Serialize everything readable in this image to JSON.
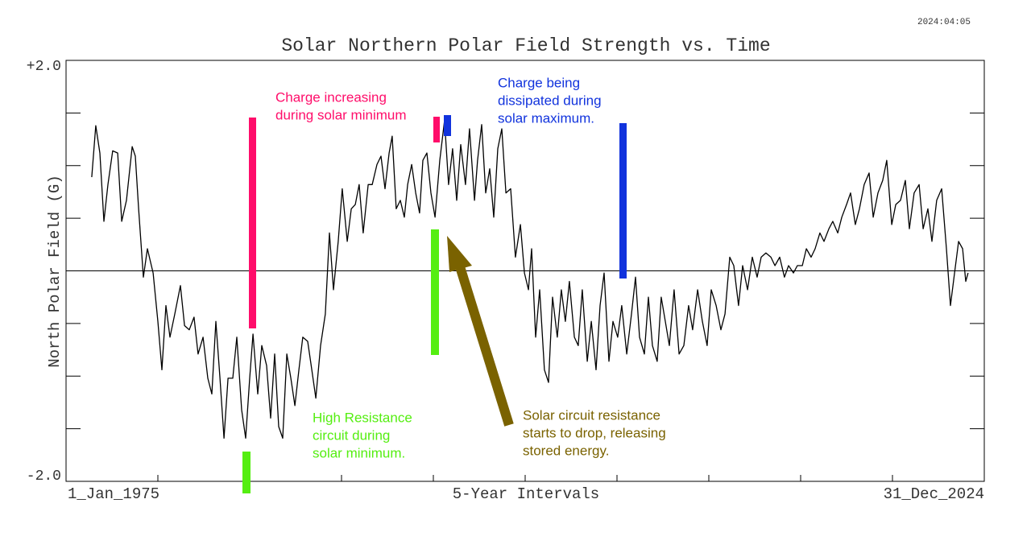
{
  "date_stamp": "2024:04:05",
  "chart_data": {
    "type": "line",
    "title": "Solar Northern Polar Field Strength vs. Time",
    "ylabel": "North Polar Field (G)",
    "xlabel": "5-Year Intervals",
    "xlim": [
      1975,
      2025
    ],
    "xticks": [
      {
        "value": 1975,
        "label": "1_Jan_1975"
      },
      {
        "value": 2025,
        "label": "31_Dec_2024"
      }
    ],
    "minor_xticks": [
      1980,
      1985,
      1990,
      1995,
      2000,
      2005,
      2010,
      2015,
      2020
    ],
    "ylim": [
      -2,
      2
    ],
    "yticks": [
      {
        "value": 2,
        "label": "+2.0"
      },
      {
        "value": -2,
        "label": "-2.0"
      }
    ],
    "minor_yticks": [
      -1.5,
      -1,
      -0.5,
      0,
      0.5,
      1,
      1.5
    ],
    "hlines": [
      0
    ],
    "color": "#000000",
    "x": [
      1976.4,
      1976.62,
      1976.84,
      1977.06,
      1977.28,
      1977.54,
      1977.81,
      1978.03,
      1978.29,
      1978.6,
      1978.77,
      1978.95,
      1979.21,
      1979.43,
      1979.74,
      1980.0,
      1980.22,
      1980.44,
      1980.66,
      1980.92,
      1981.23,
      1981.45,
      1981.71,
      1981.97,
      1982.19,
      1982.46,
      1982.72,
      1982.94,
      1983.16,
      1983.38,
      1983.6,
      1983.82,
      1984.08,
      1984.3,
      1984.56,
      1984.78,
      1985.0,
      1985.18,
      1985.44,
      1985.66,
      1985.92,
      1986.14,
      1986.36,
      1986.58,
      1986.8,
      1987.02,
      1987.24,
      1987.46,
      1987.68,
      1987.89,
      1988.16,
      1988.38,
      1988.6,
      1988.86,
      1989.12,
      1989.34,
      1989.56,
      1989.82,
      1990.04,
      1990.31,
      1990.53,
      1990.75,
      1990.96,
      1991.18,
      1991.45,
      1991.67,
      1991.93,
      1992.15,
      1992.37,
      1992.59,
      1992.76,
      1992.98,
      1993.2,
      1993.42,
      1993.6,
      1993.82,
      1994.04,
      1994.25,
      1994.43,
      1994.65,
      1994.87,
      1995.09,
      1995.35,
      1995.61,
      1995.83,
      1996.05,
      1996.27,
      1996.49,
      1996.75,
      1996.97,
      1997.24,
      1997.41,
      1997.63,
      1997.85,
      1998.07,
      1998.29,
      1998.51,
      1998.73,
      1998.95,
      1999.21,
      1999.47,
      1999.74,
      1999.96,
      2000.18,
      2000.35,
      2000.57,
      2000.79,
      2001.05,
      2001.27,
      2001.49,
      2001.75,
      2001.97,
      2002.19,
      2002.41,
      2002.68,
      2002.89,
      2003.11,
      2003.38,
      2003.6,
      2003.86,
      2004.08,
      2004.3,
      2004.56,
      2004.78,
      2005.04,
      2005.26,
      2005.53,
      2005.79,
      2006.01,
      2006.23,
      2006.49,
      2006.71,
      2006.93,
      2007.19,
      2007.41,
      2007.63,
      2007.85,
      2008.11,
      2008.38,
      2008.64,
      2008.9,
      2009.12,
      2009.39,
      2009.65,
      2009.91,
      2010.13,
      2010.4,
      2010.66,
      2010.88,
      2011.14,
      2011.36,
      2011.62,
      2011.84,
      2012.11,
      2012.37,
      2012.63,
      2012.85,
      2013.11,
      2013.38,
      2013.6,
      2013.86,
      2014.12,
      2014.34,
      2014.61,
      2014.82,
      2015.09,
      2015.31,
      2015.57,
      2015.79,
      2016.05,
      2016.27,
      2016.54,
      2016.75,
      2017.02,
      2017.24,
      2017.5,
      2017.72,
      2017.98,
      2018.2,
      2018.46,
      2018.73,
      2018.95,
      2019.21,
      2019.47,
      2019.69,
      2019.96,
      2020.18,
      2020.44,
      2020.7,
      2020.92,
      2021.18,
      2021.45,
      2021.67,
      2021.93,
      2022.15,
      2022.41,
      2022.68,
      2022.94,
      2023.16,
      2023.38,
      2023.6,
      2023.82,
      2023.99,
      2024.12
    ],
    "values": [
      0.89,
      1.38,
      1.12,
      0.47,
      0.82,
      1.14,
      1.12,
      0.47,
      0.67,
      1.18,
      1.09,
      0.59,
      -0.06,
      0.21,
      -0.02,
      -0.48,
      -0.94,
      -0.33,
      -0.63,
      -0.41,
      -0.14,
      -0.52,
      -0.56,
      -0.44,
      -0.79,
      -0.63,
      -1.02,
      -1.17,
      -0.48,
      -1.02,
      -1.59,
      -1.02,
      -1.02,
      -0.63,
      -1.32,
      -1.59,
      -1.02,
      -0.6,
      -1.17,
      -0.71,
      -0.9,
      -1.4,
      -0.79,
      -1.48,
      -1.59,
      -0.79,
      -1.02,
      -1.28,
      -0.94,
      -0.63,
      -0.67,
      -0.94,
      -1.21,
      -0.71,
      -0.41,
      0.36,
      -0.18,
      0.28,
      0.78,
      0.28,
      0.59,
      0.63,
      0.82,
      0.36,
      0.82,
      0.82,
      1.01,
      1.09,
      0.78,
      1.12,
      1.28,
      0.59,
      0.67,
      0.51,
      0.82,
      1.01,
      0.74,
      0.55,
      1.05,
      1.12,
      0.74,
      0.51,
      1.05,
      1.43,
      0.82,
      1.16,
      0.67,
      1.2,
      0.82,
      1.35,
      0.67,
      1.05,
      1.39,
      0.74,
      0.97,
      0.51,
      1.16,
      1.35,
      0.74,
      0.78,
      0.13,
      0.44,
      -0.02,
      -0.18,
      0.21,
      -0.63,
      -0.18,
      -0.94,
      -1.06,
      -0.25,
      -0.63,
      -0.18,
      -0.48,
      -0.1,
      -0.63,
      -0.71,
      -0.18,
      -0.86,
      -0.48,
      -0.94,
      -0.33,
      -0.02,
      -0.86,
      -0.48,
      -0.63,
      -0.33,
      -0.79,
      -0.41,
      -0.06,
      -0.63,
      -0.79,
      -0.25,
      -0.71,
      -0.86,
      -0.25,
      -0.48,
      -0.71,
      -0.18,
      -0.79,
      -0.71,
      -0.33,
      -0.56,
      -0.18,
      -0.48,
      -0.71,
      -0.18,
      -0.33,
      -0.56,
      -0.41,
      0.13,
      0.05,
      -0.33,
      0.05,
      -0.18,
      0.13,
      -0.06,
      0.13,
      0.17,
      0.13,
      0.05,
      0.13,
      -0.06,
      0.05,
      -0.02,
      0.05,
      0.05,
      0.21,
      0.13,
      0.21,
      0.36,
      0.28,
      0.4,
      0.47,
      0.36,
      0.51,
      0.63,
      0.74,
      0.44,
      0.59,
      0.82,
      0.93,
      0.51,
      0.74,
      0.86,
      1.05,
      0.44,
      0.63,
      0.67,
      0.86,
      0.4,
      0.74,
      0.82,
      0.4,
      0.59,
      0.28,
      0.67,
      0.78,
      0.21,
      -0.33,
      -0.02,
      0.28,
      0.21,
      -0.1,
      -0.02
    ],
    "annotations": [
      {
        "lines": [
          "Charge increasing",
          "during solar minimum"
        ],
        "color": "#ff0d6a"
      },
      {
        "lines": [
          "Charge being",
          "dissipated during",
          "solar maximum."
        ],
        "color": "#1133dd"
      },
      {
        "lines": [
          "High Resistance",
          "circuit during",
          "solar minimum."
        ],
        "color": "#55ee11"
      },
      {
        "lines": [
          "Solar circuit resistance",
          "starts to drop, releasing",
          "stored energy."
        ],
        "color": "#7a6200"
      }
    ]
  }
}
